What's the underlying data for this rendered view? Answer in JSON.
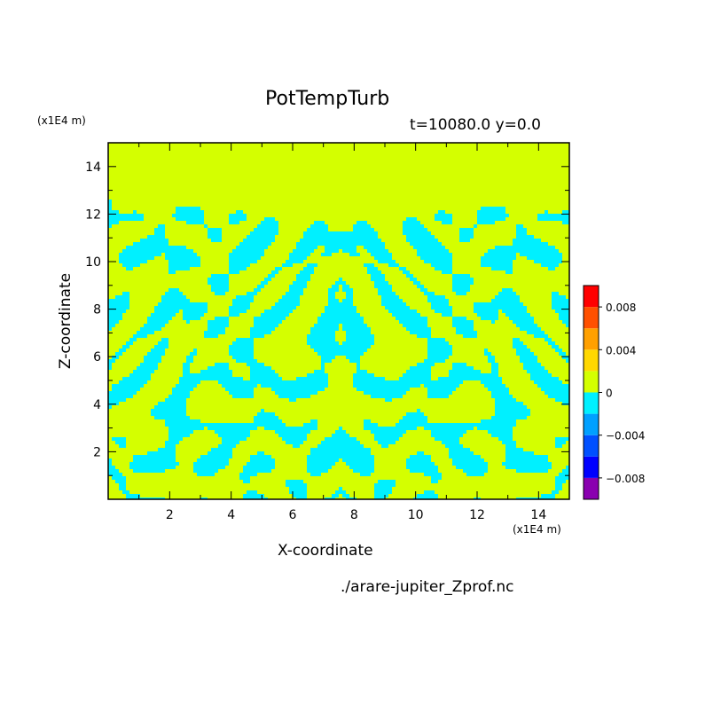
{
  "chart_data": {
    "type": "heatmap",
    "title": "PotTempTurb",
    "subtitle": "t=10080.0 y=0.0",
    "xlabel": "X-coordinate",
    "ylabel": "Z-coordinate",
    "x_unit": "(x1E4 m)",
    "z_unit": "(x1E4 m)",
    "source_file": "./arare-jupiter_Zprof.nc",
    "xlim": [
      0,
      15
    ],
    "ylim": [
      0,
      15
    ],
    "x_ticks": [
      "2",
      "4",
      "6",
      "8",
      "10",
      "12",
      "14"
    ],
    "x_tick_values": [
      2,
      4,
      6,
      8,
      10,
      12,
      14
    ],
    "y_ticks": [
      "2",
      "4",
      "6",
      "8",
      "10",
      "12",
      "14"
    ],
    "y_tick_values": [
      2,
      4,
      6,
      8,
      10,
      12,
      14
    ],
    "turbulence_top": 12.6,
    "colorbar": {
      "levels": [
        -0.01,
        -0.008,
        -0.006,
        -0.004,
        -0.002,
        0,
        0.002,
        0.004,
        0.006,
        0.008,
        0.01
      ],
      "colors": [
        "#8a00b0",
        "#0000ff",
        "#0050ff",
        "#00a0ff",
        "#00f0ff",
        "#d4ff00",
        "#ffd800",
        "#ffa000",
        "#ff5000",
        "#ff0000",
        "#ffaaaa"
      ],
      "tick_labels": [
        "0.008",
        "0.004",
        "0",
        "−0.004",
        "−0.008"
      ],
      "tick_values": [
        0.008,
        0.004,
        0,
        -0.004,
        -0.008
      ]
    },
    "dominant_colors": {
      "positive": "#d4ff00",
      "negative": "#00f0ff"
    }
  }
}
